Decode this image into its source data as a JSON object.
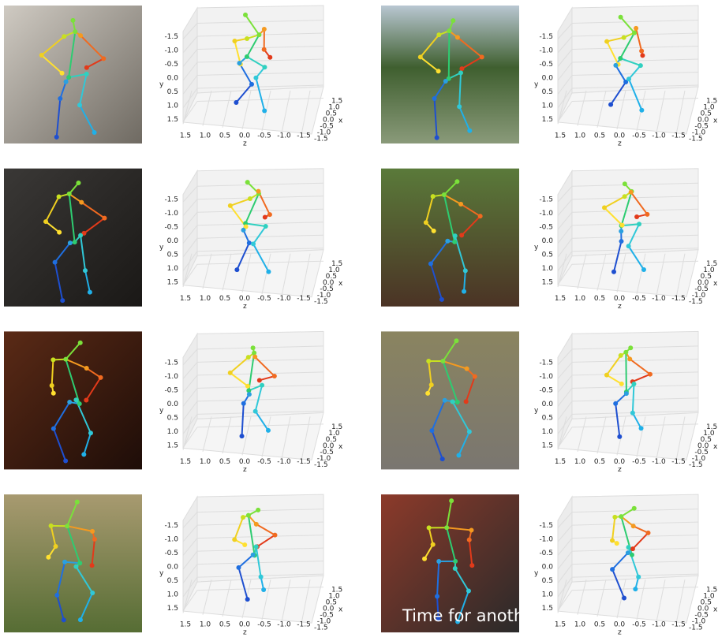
{
  "figure": {
    "axis_labels": {
      "x": "x",
      "y": "y",
      "z": "z"
    },
    "ticks": [
      -1.5,
      {
        "value": -1,
        "label": "-1.0"
      },
      -0.5,
      {
        "value": 0,
        "label": "0.0"
      },
      0.5,
      {
        "value": 1,
        "label": "1.0"
      },
      1.5
    ],
    "photo_overlay_text": "Time for anoth"
  }
}
